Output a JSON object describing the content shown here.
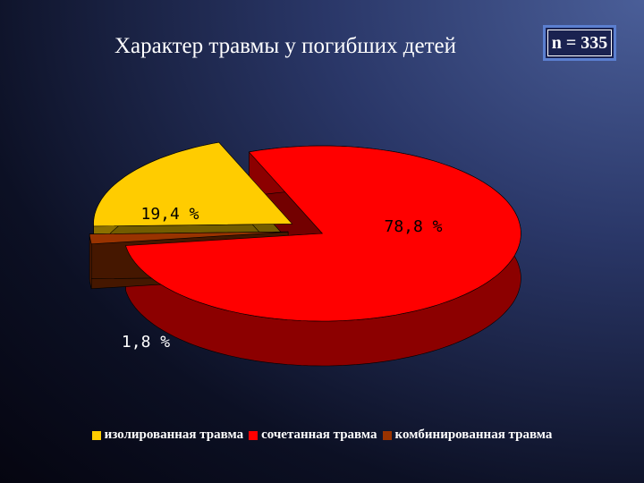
{
  "chart_data": {
    "type": "pie",
    "title": "Характер травмы у погибших детей",
    "annotation": "n = 335",
    "categories": [
      "изолированная травма",
      "сочетанная травма",
      "комбинированная травма"
    ],
    "values": [
      19.4,
      78.8,
      1.8
    ],
    "value_labels": [
      "19,4 %",
      "78,8 %",
      "1,8 %"
    ],
    "colors": [
      "#ffcc00",
      "#ff0000",
      "#993300"
    ]
  }
}
